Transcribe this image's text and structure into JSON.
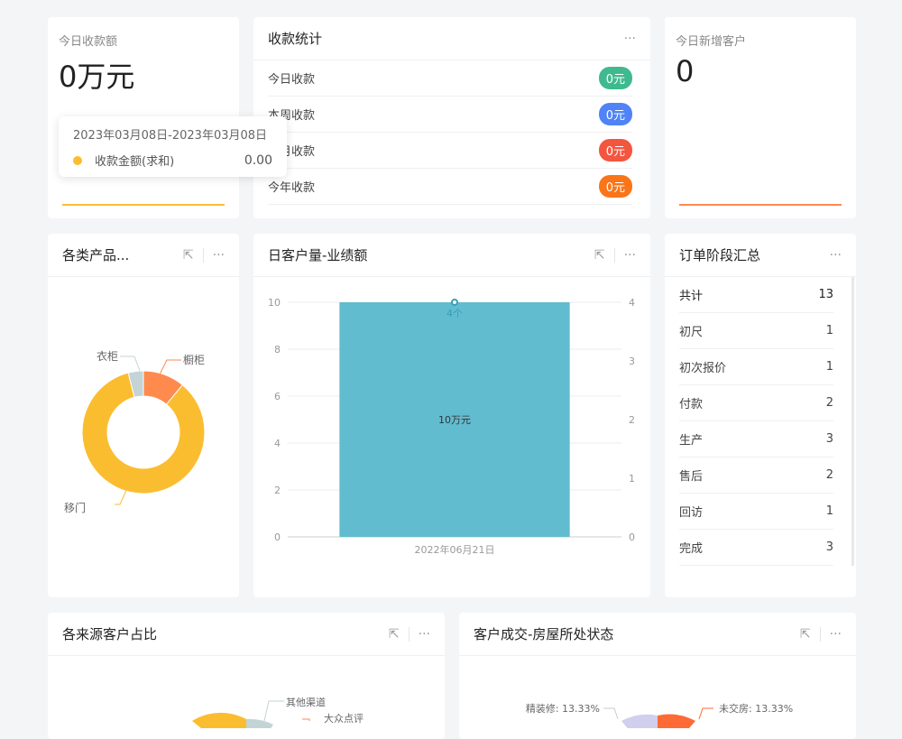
{
  "today_amount": {
    "label": "今日收款额",
    "value": "0万元",
    "tooltip": {
      "range": "2023年03月08日-2023年03月08日",
      "series": "收款金额(求和)",
      "value": "0.00"
    }
  },
  "stats": {
    "title": "收款统计",
    "rows": [
      {
        "label": "今日收款",
        "value": "0元",
        "color": "#3fba8f"
      },
      {
        "label": "本周收款",
        "value": "0元",
        "color": "#4f83f7"
      },
      {
        "label": "本月收款",
        "value": "0元",
        "color": "#f4553f"
      },
      {
        "label": "今年收款",
        "value": "0元",
        "color": "#fa7519"
      }
    ]
  },
  "new_customers": {
    "label": "今日新增客户",
    "value": "0"
  },
  "products": {
    "title": "各类产品..."
  },
  "daily": {
    "title": "日客户量-业绩额"
  },
  "orders": {
    "title": "订单阶段汇总",
    "rows": [
      {
        "label": "共计",
        "value": "13"
      },
      {
        "label": "初尺",
        "value": "1"
      },
      {
        "label": "初次报价",
        "value": "1"
      },
      {
        "label": "付款",
        "value": "2"
      },
      {
        "label": "生产",
        "value": "3"
      },
      {
        "label": "售后",
        "value": "2"
      },
      {
        "label": "回访",
        "value": "1"
      },
      {
        "label": "完成",
        "value": "3"
      }
    ]
  },
  "sources": {
    "title": "各来源客户占比",
    "labels": [
      "其他渠道",
      "大众点评"
    ]
  },
  "house": {
    "title": "客户成交-房屋所处状态",
    "labels": [
      "精装修: 13.33%",
      "未交房: 13.33%"
    ]
  },
  "icons": {
    "more": "more-icon",
    "expand": "external-link-icon"
  },
  "chart_data": [
    {
      "type": "pie",
      "donut": true,
      "labels": [
        "橱柜",
        "移门",
        "衣柜"
      ],
      "values": [
        11,
        85,
        4
      ],
      "colors": [
        "#fe8a4d",
        "#fbbd30",
        "#c4d3d6"
      ]
    },
    {
      "type": "bar",
      "categories": [
        "2022年06月21日"
      ],
      "series": [
        {
          "values": [
            10
          ],
          "label": "10万元",
          "axis": "left",
          "color": "#62bccf"
        },
        {
          "type": "line",
          "values": [
            4
          ],
          "label": "4个",
          "axis": "right",
          "color": "#3a9fb3"
        }
      ],
      "ylim": [
        0,
        10
      ],
      "yticks": [
        0,
        2,
        4,
        6,
        8,
        10
      ],
      "y2lim": [
        0,
        4
      ],
      "y2ticks": [
        0,
        1,
        2,
        3,
        4
      ]
    }
  ]
}
